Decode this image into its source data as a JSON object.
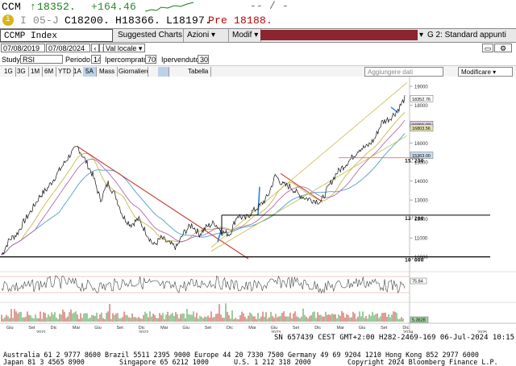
{
  "quote": {
    "ticker": "CCM",
    "last": "18352.",
    "change": "+164.46",
    "open_label": "I 05-J",
    "open_value": "C18200.",
    "high": "H18366.",
    "low": "L18197.",
    "prev": "Pre 18188.",
    "dashes": "-- / -"
  },
  "menubar": {
    "security": "CCMP Index",
    "suggested": "Suggested Charts",
    "actions": "Azioni",
    "modify": "Modif",
    "page": "G 2: Standard appunti"
  },
  "controls": {
    "date_from": "07/08/2019",
    "date_to": "07/08/2024",
    "currency": "Val locale",
    "study_label": "Study",
    "study": "RSI",
    "period_label": "Periodo",
    "period": "14",
    "overbought_label": "Ipercomprato",
    "overbought": "70",
    "oversold_label": "Ipervenduto",
    "oversold": "30",
    "ranges": [
      "1G",
      "3G",
      "1M",
      "6M",
      "YTD",
      "1A",
      "5A",
      "Mass",
      "Giornaliero"
    ],
    "table": "Tabella",
    "add_data": "Aggiungere dati",
    "modify_btn": "Modificare"
  },
  "chart_data": {
    "type": "line",
    "title": "",
    "y_ticks": [
      "19000",
      "18000",
      "17000",
      "16000",
      "15000",
      "14000",
      "13000",
      "12000",
      "11000",
      "10000"
    ],
    "ylim": [
      9900,
      19300
    ],
    "price_tags": [
      {
        "label": "18352.76",
        "value": 18352.76,
        "color": "#ffffff"
      },
      {
        "label": "16991.37",
        "value": 16991.37,
        "color": "#d8c8e8"
      },
      {
        "label": "16803.56",
        "value": 16803.56,
        "color": "#e6e6b4"
      },
      {
        "label": "15363.00",
        "value": 15363.0,
        "color": "#c8e0f0"
      }
    ],
    "level_labels": [
      {
        "label": "15'230",
        "value": 15230
      },
      {
        "label": "12'200",
        "value": 12200
      },
      {
        "label": "10'000",
        "value": 10000
      }
    ],
    "rsi_tag": "75.84",
    "vol_tag": "5.3628",
    "x_labels": [
      "Giu",
      "Set",
      "Dic",
      "Mar",
      "Giu",
      "Set",
      "Dic",
      "Mar",
      "Giu",
      "Set",
      "Dic",
      "Mar",
      "Giu",
      "Set",
      "Dic",
      "Mar",
      "Giu",
      "Set",
      "Dic"
    ],
    "year_labels": [
      "2020",
      "2021",
      "2022",
      "2023",
      "2024",
      "2025"
    ],
    "series": [
      {
        "name": "",
        "color": "#000000",
        "values": [
          10100,
          10900,
          11200,
          11900,
          12500,
          13200,
          13600,
          14200,
          14800,
          15400,
          15800,
          15100,
          14300,
          13000,
          13900,
          13200,
          12100,
          11700,
          12000,
          11300,
          10600,
          11000,
          10700,
          10500,
          11300,
          11700,
          11200,
          11600,
          11800,
          11300,
          11200,
          12200,
          12000,
          12400,
          12700,
          13200,
          14300,
          13800,
          13700,
          13300,
          13100,
          13000,
          12900,
          13700,
          14400,
          14800,
          15200,
          15700,
          15800,
          16200,
          17100,
          17300,
          17700,
          18352
        ]
      }
    ]
  },
  "footer": {
    "meta": "SN 657439 CEST GMT+2:00 H282-2469-169 06-Jul-2024 10:15",
    "line1": "Australia 61 2 9777 8600 Brazil 5511 2395 9000 Europe 44 20 7330 7500 Germany 49 69 9204 1210 Hong Kong 852 2977 6000",
    "line2a": "Japan 81 3 4565 8900",
    "line2b": "Singapore 65 6212 1000",
    "line2c": "U.S. 1 212 318 2000",
    "line2d": "Copyright 2024 Bloomberg Finance L.P."
  }
}
